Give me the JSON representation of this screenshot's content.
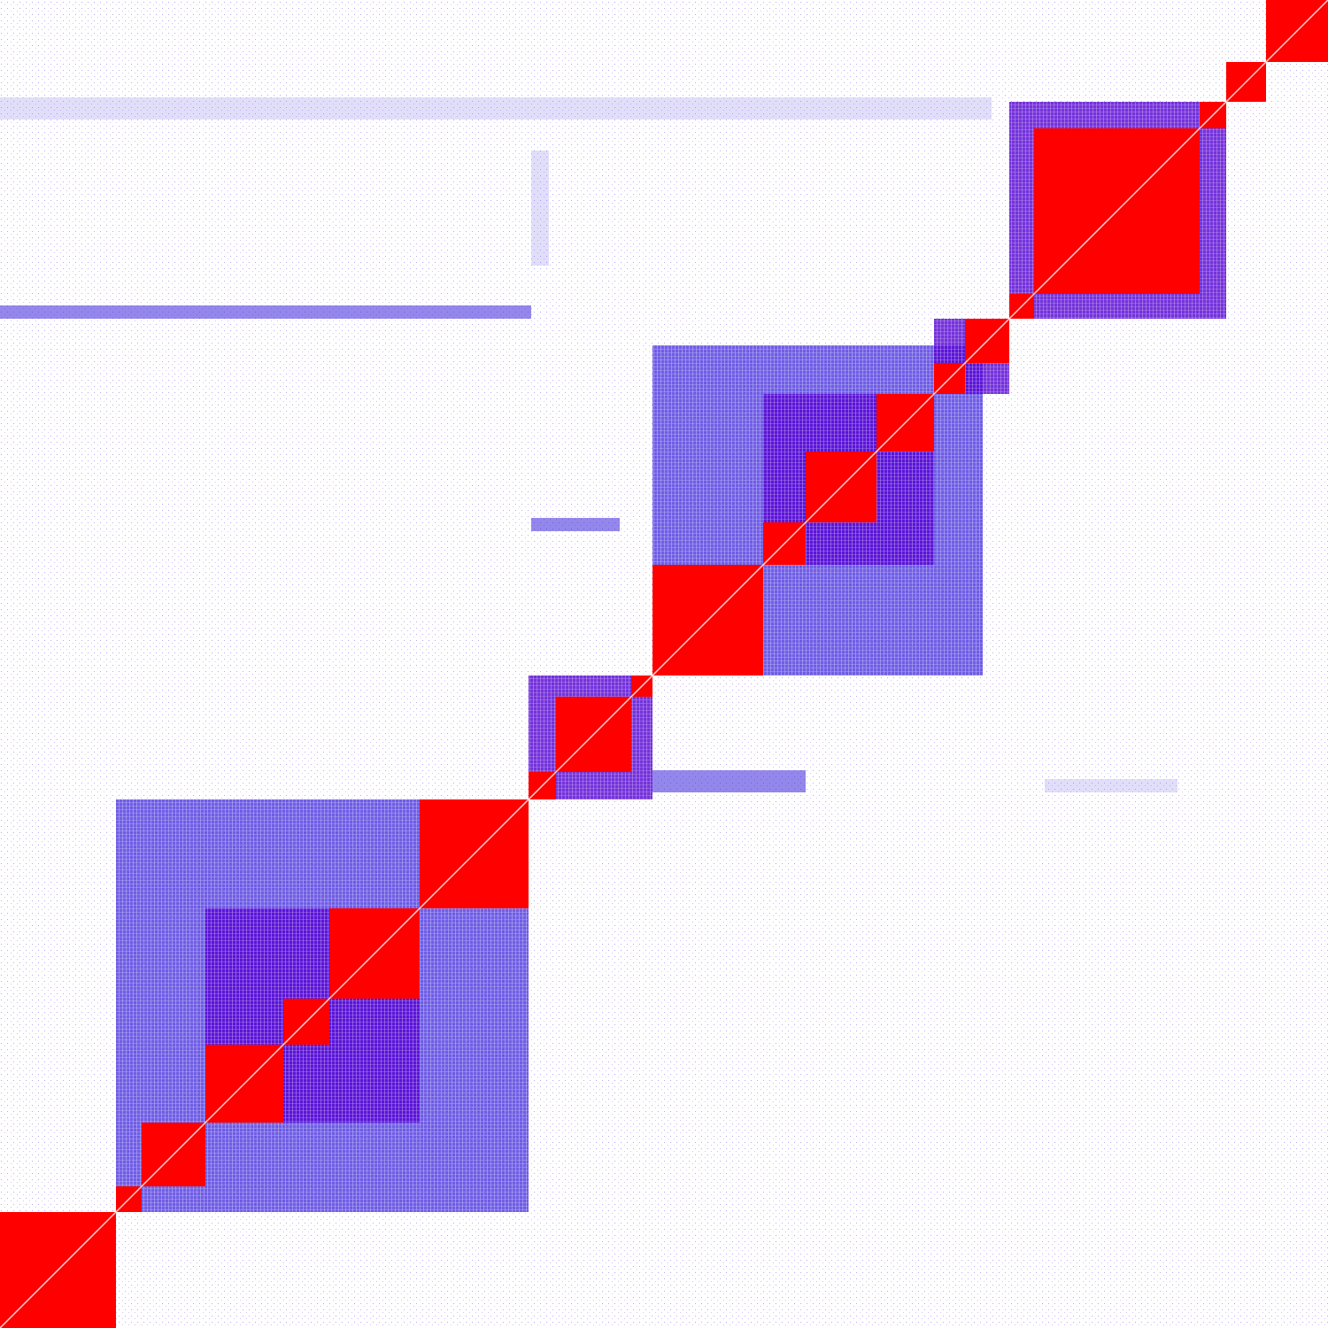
{
  "chart_data": {
    "type": "heatmap",
    "title": "",
    "xlabel": "",
    "ylabel": "",
    "grid": false,
    "legend": "none",
    "matrix_size": 1500,
    "colors": {
      "background": "#ffffff",
      "strong": "#ff0000",
      "medium": "#6a00d0",
      "weak": "#2a10d8",
      "sparse": "#5a4adf",
      "diagonal": "#ffd6d6"
    },
    "dense_blocks": [
      {
        "start": 0,
        "end": 131,
        "intensity": "strong"
      },
      {
        "start": 131,
        "end": 160,
        "intensity": "strong"
      },
      {
        "start": 160,
        "end": 232,
        "intensity": "strong"
      },
      {
        "start": 232,
        "end": 320,
        "intensity": "strong"
      },
      {
        "start": 320,
        "end": 372,
        "intensity": "strong"
      },
      {
        "start": 372,
        "end": 474,
        "intensity": "strong"
      },
      {
        "start": 474,
        "end": 597,
        "intensity": "strong"
      },
      {
        "start": 597,
        "end": 628,
        "intensity": "strong"
      },
      {
        "start": 628,
        "end": 713,
        "intensity": "strong"
      },
      {
        "start": 713,
        "end": 737,
        "intensity": "strong"
      },
      {
        "start": 737,
        "end": 862,
        "intensity": "strong"
      },
      {
        "start": 862,
        "end": 910,
        "intensity": "strong"
      },
      {
        "start": 910,
        "end": 990,
        "intensity": "strong"
      },
      {
        "start": 990,
        "end": 1055,
        "intensity": "strong"
      },
      {
        "start": 1055,
        "end": 1090,
        "intensity": "strong"
      },
      {
        "start": 1090,
        "end": 1140,
        "intensity": "strong"
      },
      {
        "start": 1140,
        "end": 1168,
        "intensity": "strong"
      },
      {
        "start": 1168,
        "end": 1355,
        "intensity": "strong"
      },
      {
        "start": 1355,
        "end": 1385,
        "intensity": "strong"
      },
      {
        "start": 1385,
        "end": 1430,
        "intensity": "strong"
      },
      {
        "start": 1430,
        "end": 1500,
        "intensity": "strong"
      }
    ],
    "interaction_regions": [
      {
        "start": 131,
        "end": 597,
        "intensity": "weak"
      },
      {
        "start": 232,
        "end": 474,
        "intensity": "medium"
      },
      {
        "start": 597,
        "end": 737,
        "intensity": "medium"
      },
      {
        "start": 737,
        "end": 1110,
        "intensity": "weak"
      },
      {
        "start": 862,
        "end": 1055,
        "intensity": "medium"
      },
      {
        "start": 1140,
        "end": 1385,
        "intensity": "medium"
      },
      {
        "start": 1055,
        "end": 1140,
        "intensity": "medium"
      }
    ],
    "off_diagonal_bands": [
      {
        "rows": [
          345,
          360
        ],
        "cols": [
          0,
          600
        ],
        "intensity": "weak"
      },
      {
        "rows": [
          585,
          600
        ],
        "cols": [
          600,
          700
        ],
        "intensity": "weak"
      },
      {
        "rows": [
          870,
          895
        ],
        "cols": [
          737,
          910
        ],
        "intensity": "weak"
      },
      {
        "rows": [
          880,
          895
        ],
        "cols": [
          1180,
          1330
        ],
        "intensity": "sparse"
      },
      {
        "rows": [
          110,
          135
        ],
        "cols": [
          0,
          1120
        ],
        "intensity": "sparse"
      },
      {
        "rows": [
          170,
          300
        ],
        "cols": [
          600,
          620
        ],
        "intensity": "sparse"
      }
    ]
  }
}
